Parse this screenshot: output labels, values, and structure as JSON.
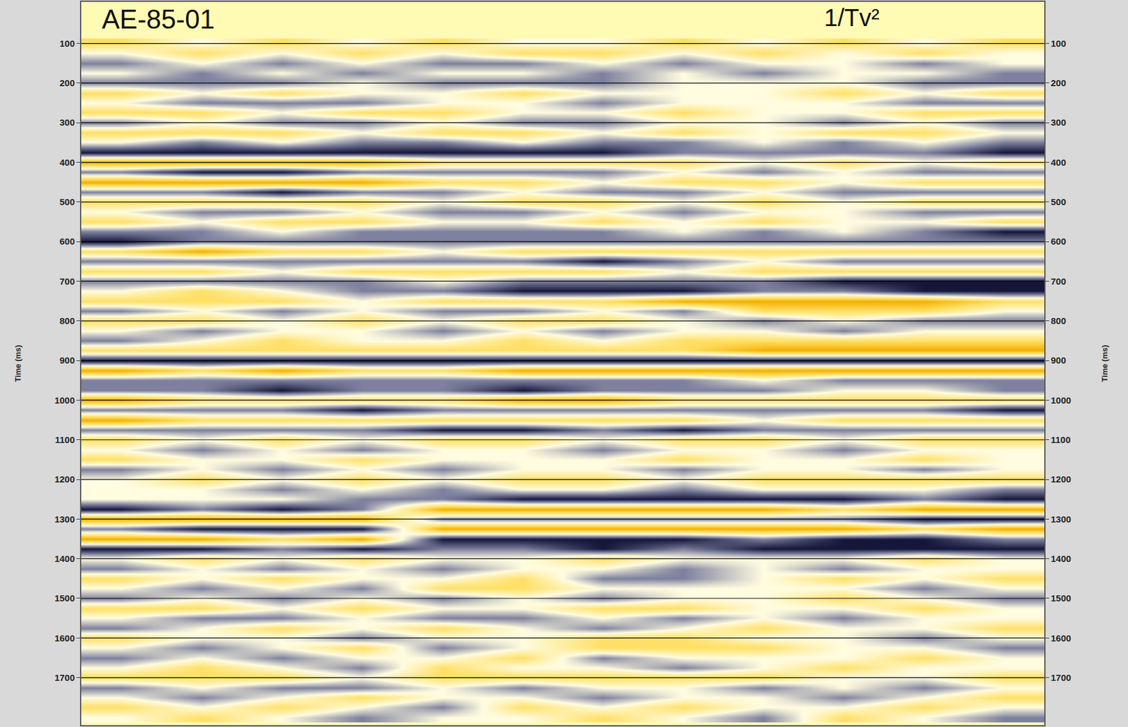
{
  "chart_data": {
    "type": "heatmap",
    "title": "AE-85-01",
    "subtitle": "1/Tv²",
    "ylabel": "Time (ms)",
    "x": [
      1,
      2,
      3,
      4,
      5,
      6,
      7,
      8,
      9,
      10,
      11,
      12
    ],
    "y": [
      100,
      125,
      150,
      175,
      200,
      225,
      250,
      275,
      300,
      325,
      350,
      375,
      400,
      425,
      450,
      475,
      500,
      525,
      550,
      575,
      600,
      625,
      650,
      675,
      700,
      725,
      750,
      775,
      800,
      825,
      850,
      875,
      900,
      925,
      950,
      975,
      1000,
      1025,
      1050,
      1075,
      1100,
      1125,
      1150,
      1175,
      1200,
      1225,
      1250,
      1275,
      1300,
      1325,
      1350,
      1375,
      1400,
      1425,
      1450,
      1475,
      1500,
      1525,
      1550,
      1575,
      1600,
      1625,
      1650,
      1675,
      1700,
      1725,
      1750,
      1775,
      1800
    ],
    "z": [
      [
        1,
        0,
        1,
        0,
        1,
        0,
        0,
        1,
        0,
        1,
        0,
        1
      ],
      [
        0,
        1,
        0,
        1,
        0,
        1,
        1,
        0,
        1,
        0,
        1,
        0
      ],
      [
        -1,
        0,
        -1,
        0,
        -1,
        -1,
        0,
        -1,
        0,
        0,
        -1,
        0
      ],
      [
        0,
        -1,
        0,
        -1,
        0,
        0,
        -1,
        0,
        -1,
        0,
        0,
        -1
      ],
      [
        -1,
        -1,
        -1,
        0,
        -1,
        -1,
        -1,
        0,
        0,
        0,
        -1,
        -1
      ],
      [
        1,
        0,
        1,
        0,
        0,
        1,
        0,
        0,
        0,
        1,
        0,
        1
      ],
      [
        0,
        -1,
        -1,
        -1,
        0,
        0,
        -1,
        0,
        0,
        0,
        -1,
        -1
      ],
      [
        1,
        1,
        0,
        1,
        1,
        0,
        0,
        1,
        0,
        0,
        1,
        1
      ],
      [
        -1,
        0,
        -1,
        -1,
        0,
        -1,
        -1,
        0,
        0,
        -1,
        0,
        -1
      ],
      [
        1,
        1,
        1,
        0,
        1,
        1,
        0,
        1,
        0,
        1,
        1,
        0
      ],
      [
        0,
        -1,
        0,
        -1,
        -1,
        0,
        -1,
        -1,
        0,
        -1,
        0,
        -1
      ],
      [
        -2,
        -2,
        -2,
        -2,
        -2,
        -2,
        -2,
        -1,
        -1,
        -1,
        -1,
        -2
      ],
      [
        2,
        2,
        2,
        2,
        1,
        1,
        1,
        1,
        0,
        1,
        0,
        1
      ],
      [
        -1,
        -2,
        -2,
        -1,
        -1,
        -1,
        -1,
        0,
        -1,
        0,
        -1,
        -1
      ],
      [
        2,
        2,
        2,
        2,
        1,
        1,
        0,
        1,
        1,
        0,
        1,
        1
      ],
      [
        -1,
        -1,
        -2,
        -1,
        -1,
        0,
        -1,
        -1,
        0,
        -1,
        -1,
        -1
      ],
      [
        1,
        1,
        1,
        1,
        0,
        1,
        1,
        0,
        1,
        0,
        1,
        1
      ],
      [
        0,
        -1,
        -1,
        0,
        -1,
        -1,
        0,
        -1,
        0,
        0,
        -1,
        -1
      ],
      [
        1,
        0,
        1,
        1,
        0,
        0,
        1,
        0,
        1,
        0,
        0,
        1
      ],
      [
        -1,
        -1,
        0,
        -1,
        -1,
        -1,
        -1,
        0,
        -1,
        0,
        -1,
        -2
      ],
      [
        -2,
        -1,
        -1,
        -1,
        -1,
        -1,
        -1,
        -1,
        -1,
        -1,
        -1,
        -1
      ],
      [
        1,
        2,
        1,
        1,
        0,
        1,
        1,
        1,
        1,
        1,
        1,
        1
      ],
      [
        -1,
        -1,
        -1,
        -1,
        -1,
        -1,
        -2,
        -1,
        0,
        -1,
        -1,
        -1
      ],
      [
        1,
        1,
        0,
        1,
        1,
        1,
        1,
        0,
        1,
        1,
        1,
        1
      ],
      [
        -1,
        -1,
        -1,
        -1,
        0,
        -1,
        -1,
        -1,
        -1,
        -2,
        -2,
        -2
      ],
      [
        0,
        1,
        0,
        -1,
        -1,
        -2,
        -2,
        -2,
        -1,
        -1,
        -2,
        -2
      ],
      [
        1,
        1,
        1,
        0,
        1,
        1,
        1,
        2,
        2,
        2,
        2,
        1
      ],
      [
        -1,
        0,
        -1,
        0,
        -1,
        -1,
        0,
        -1,
        1,
        1,
        1,
        0
      ],
      [
        1,
        1,
        0,
        1,
        0,
        1,
        1,
        0,
        -1,
        0,
        -1,
        -1
      ],
      [
        0,
        -1,
        0,
        0,
        -1,
        0,
        -1,
        0,
        0,
        -1,
        0,
        0
      ],
      [
        -1,
        0,
        1,
        0,
        0,
        1,
        0,
        1,
        1,
        1,
        1,
        1
      ],
      [
        1,
        1,
        1,
        1,
        1,
        1,
        1,
        1,
        2,
        2,
        2,
        2
      ],
      [
        -2,
        -2,
        -2,
        -2,
        -2,
        -2,
        -2,
        -2,
        -2,
        -2,
        -2,
        -2
      ],
      [
        2,
        1,
        2,
        1,
        1,
        2,
        2,
        2,
        2,
        2,
        2,
        2
      ],
      [
        -1,
        -1,
        -1,
        -1,
        -1,
        -1,
        -1,
        -1,
        0,
        -1,
        -1,
        -1
      ],
      [
        -1,
        -1,
        -2,
        -1,
        -1,
        -2,
        -1,
        -1,
        -1,
        0,
        0,
        -1
      ],
      [
        2,
        1,
        1,
        1,
        1,
        2,
        2,
        1,
        1,
        1,
        1,
        1
      ],
      [
        -1,
        -1,
        -1,
        -2,
        -1,
        -1,
        -1,
        -1,
        -1,
        -1,
        -1,
        -2
      ],
      [
        2,
        1,
        1,
        1,
        1,
        1,
        1,
        1,
        0,
        1,
        1,
        1
      ],
      [
        -1,
        -1,
        -1,
        -1,
        -2,
        -2,
        -1,
        -2,
        -1,
        -1,
        -1,
        -1
      ],
      [
        1,
        0,
        1,
        0,
        1,
        1,
        0,
        1,
        1,
        0,
        1,
        1
      ],
      [
        0,
        -1,
        0,
        -1,
        0,
        0,
        -1,
        0,
        0,
        -1,
        0,
        0
      ],
      [
        1,
        0,
        0,
        1,
        0,
        0,
        0,
        1,
        0,
        0,
        1,
        0
      ],
      [
        -1,
        0,
        -1,
        0,
        -1,
        0,
        0,
        -1,
        0,
        0,
        -1,
        0
      ],
      [
        0,
        1,
        0,
        1,
        0,
        1,
        1,
        0,
        1,
        1,
        1,
        1
      ],
      [
        0,
        0,
        -1,
        0,
        -1,
        0,
        0,
        -1,
        0,
        0,
        0,
        -1
      ],
      [
        0,
        0,
        0,
        -1,
        -1,
        -2,
        -2,
        -2,
        -2,
        -2,
        -1,
        -2
      ],
      [
        -2,
        -1,
        -2,
        -1,
        2,
        2,
        2,
        2,
        2,
        1,
        2,
        2
      ],
      [
        2,
        2,
        2,
        2,
        -1,
        -1,
        -1,
        -1,
        -1,
        -1,
        -2,
        -2
      ],
      [
        -1,
        -2,
        -2,
        -2,
        2,
        2,
        2,
        2,
        2,
        2,
        1,
        2
      ],
      [
        2,
        2,
        1,
        2,
        -2,
        -2,
        -2,
        -2,
        -1,
        -2,
        -2,
        -1
      ],
      [
        -2,
        -2,
        -1,
        -2,
        -1,
        -1,
        -2,
        -1,
        -2,
        -2,
        -2,
        -2
      ],
      [
        0,
        1,
        0,
        1,
        0,
        0,
        1,
        0,
        0,
        0,
        1,
        0
      ],
      [
        -1,
        0,
        -1,
        0,
        -1,
        0,
        0,
        -1,
        0,
        -1,
        0,
        0
      ],
      [
        1,
        0,
        1,
        0,
        0,
        1,
        -1,
        -1,
        0,
        1,
        0,
        1
      ],
      [
        0,
        -1,
        0,
        -1,
        1,
        1,
        0,
        0,
        0,
        0,
        -1,
        0
      ],
      [
        -1,
        0,
        -1,
        0,
        -1,
        0,
        -1,
        0,
        0,
        1,
        0,
        -1
      ],
      [
        1,
        1,
        0,
        1,
        0,
        0,
        1,
        1,
        0,
        0,
        1,
        0
      ],
      [
        0,
        -1,
        -1,
        0,
        -1,
        -1,
        0,
        -1,
        0,
        -1,
        0,
        0
      ],
      [
        -1,
        0,
        1,
        0,
        1,
        0,
        -1,
        0,
        1,
        0,
        0,
        1
      ],
      [
        1,
        0,
        0,
        -1,
        0,
        0,
        1,
        1,
        0,
        0,
        -1,
        0
      ],
      [
        0,
        -1,
        0,
        1,
        -1,
        0,
        1,
        1,
        1,
        0,
        0,
        -1
      ],
      [
        -1,
        0,
        -1,
        0,
        0,
        1,
        -1,
        0,
        0,
        0,
        1,
        0
      ],
      [
        0,
        1,
        0,
        -1,
        1,
        0,
        0,
        -1,
        0,
        1,
        0,
        0
      ],
      [
        1,
        1,
        1,
        0,
        1,
        1,
        1,
        1,
        1,
        0,
        0,
        1
      ],
      [
        -1,
        0,
        -1,
        -1,
        0,
        -1,
        0,
        0,
        -1,
        0,
        -1,
        0
      ],
      [
        0,
        -1,
        0,
        1,
        0,
        0,
        -1,
        0,
        0,
        -1,
        0,
        1
      ],
      [
        1,
        0,
        1,
        0,
        -1,
        1,
        0,
        1,
        0,
        0,
        1,
        0
      ],
      [
        0,
        1,
        0,
        -1,
        0,
        0,
        1,
        0,
        -1,
        1,
        0,
        -1
      ]
    ],
    "zlim": [
      -2,
      2
    ],
    "colors": [
      "#15173a",
      "#7d809e",
      "#fffce0",
      "#ffe066",
      "#f5b000"
    ],
    "xlim": [
      0.5,
      12.5
    ],
    "ylim": [
      1820,
      -5
    ],
    "yticks": [
      100,
      200,
      300,
      400,
      500,
      600,
      700,
      800,
      900,
      1000,
      1100,
      1200,
      1300,
      1400,
      1500,
      1600,
      1700
    ],
    "grid": true,
    "tick_labels": "y"
  }
}
